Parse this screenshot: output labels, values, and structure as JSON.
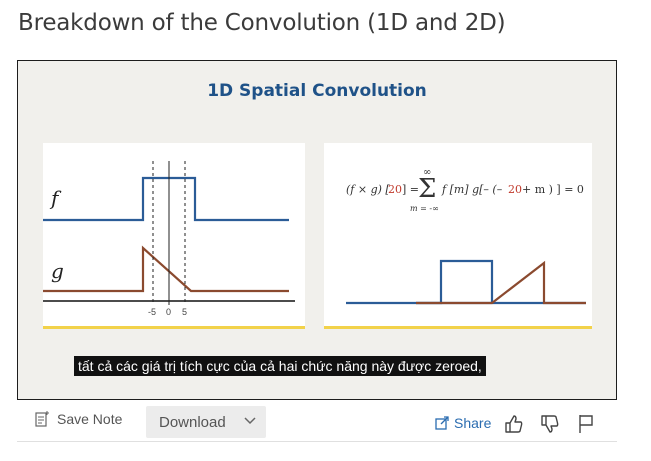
{
  "page": {
    "title": "Breakdown of the Convolution (1D and 2D)"
  },
  "slide": {
    "title": "1D Spatial Convolution",
    "left_panel": {
      "f_label": "f",
      "g_label": "g",
      "ticks": [
        "-5",
        "0",
        "5"
      ]
    },
    "right_panel": {
      "equation": {
        "lhs_open": "(f × g) [",
        "lhs_index": "20",
        "lhs_close": "] =",
        "sum_top": "∞",
        "sum_bottom": "m = -∞",
        "term": "f [m] g[– (–",
        "shift": "20",
        "term_end": " + m ) ] = 0"
      }
    },
    "colors": {
      "f": "#2b5c97",
      "g": "#8b4a2f",
      "accent": "#f2d24a",
      "title": "#1f5288"
    }
  },
  "caption": "tất cả các giá trị tích cực của cả hai chức năng này được zeroed,",
  "toolbar": {
    "save_note": "Save Note",
    "download": "Download",
    "share": "Share"
  }
}
